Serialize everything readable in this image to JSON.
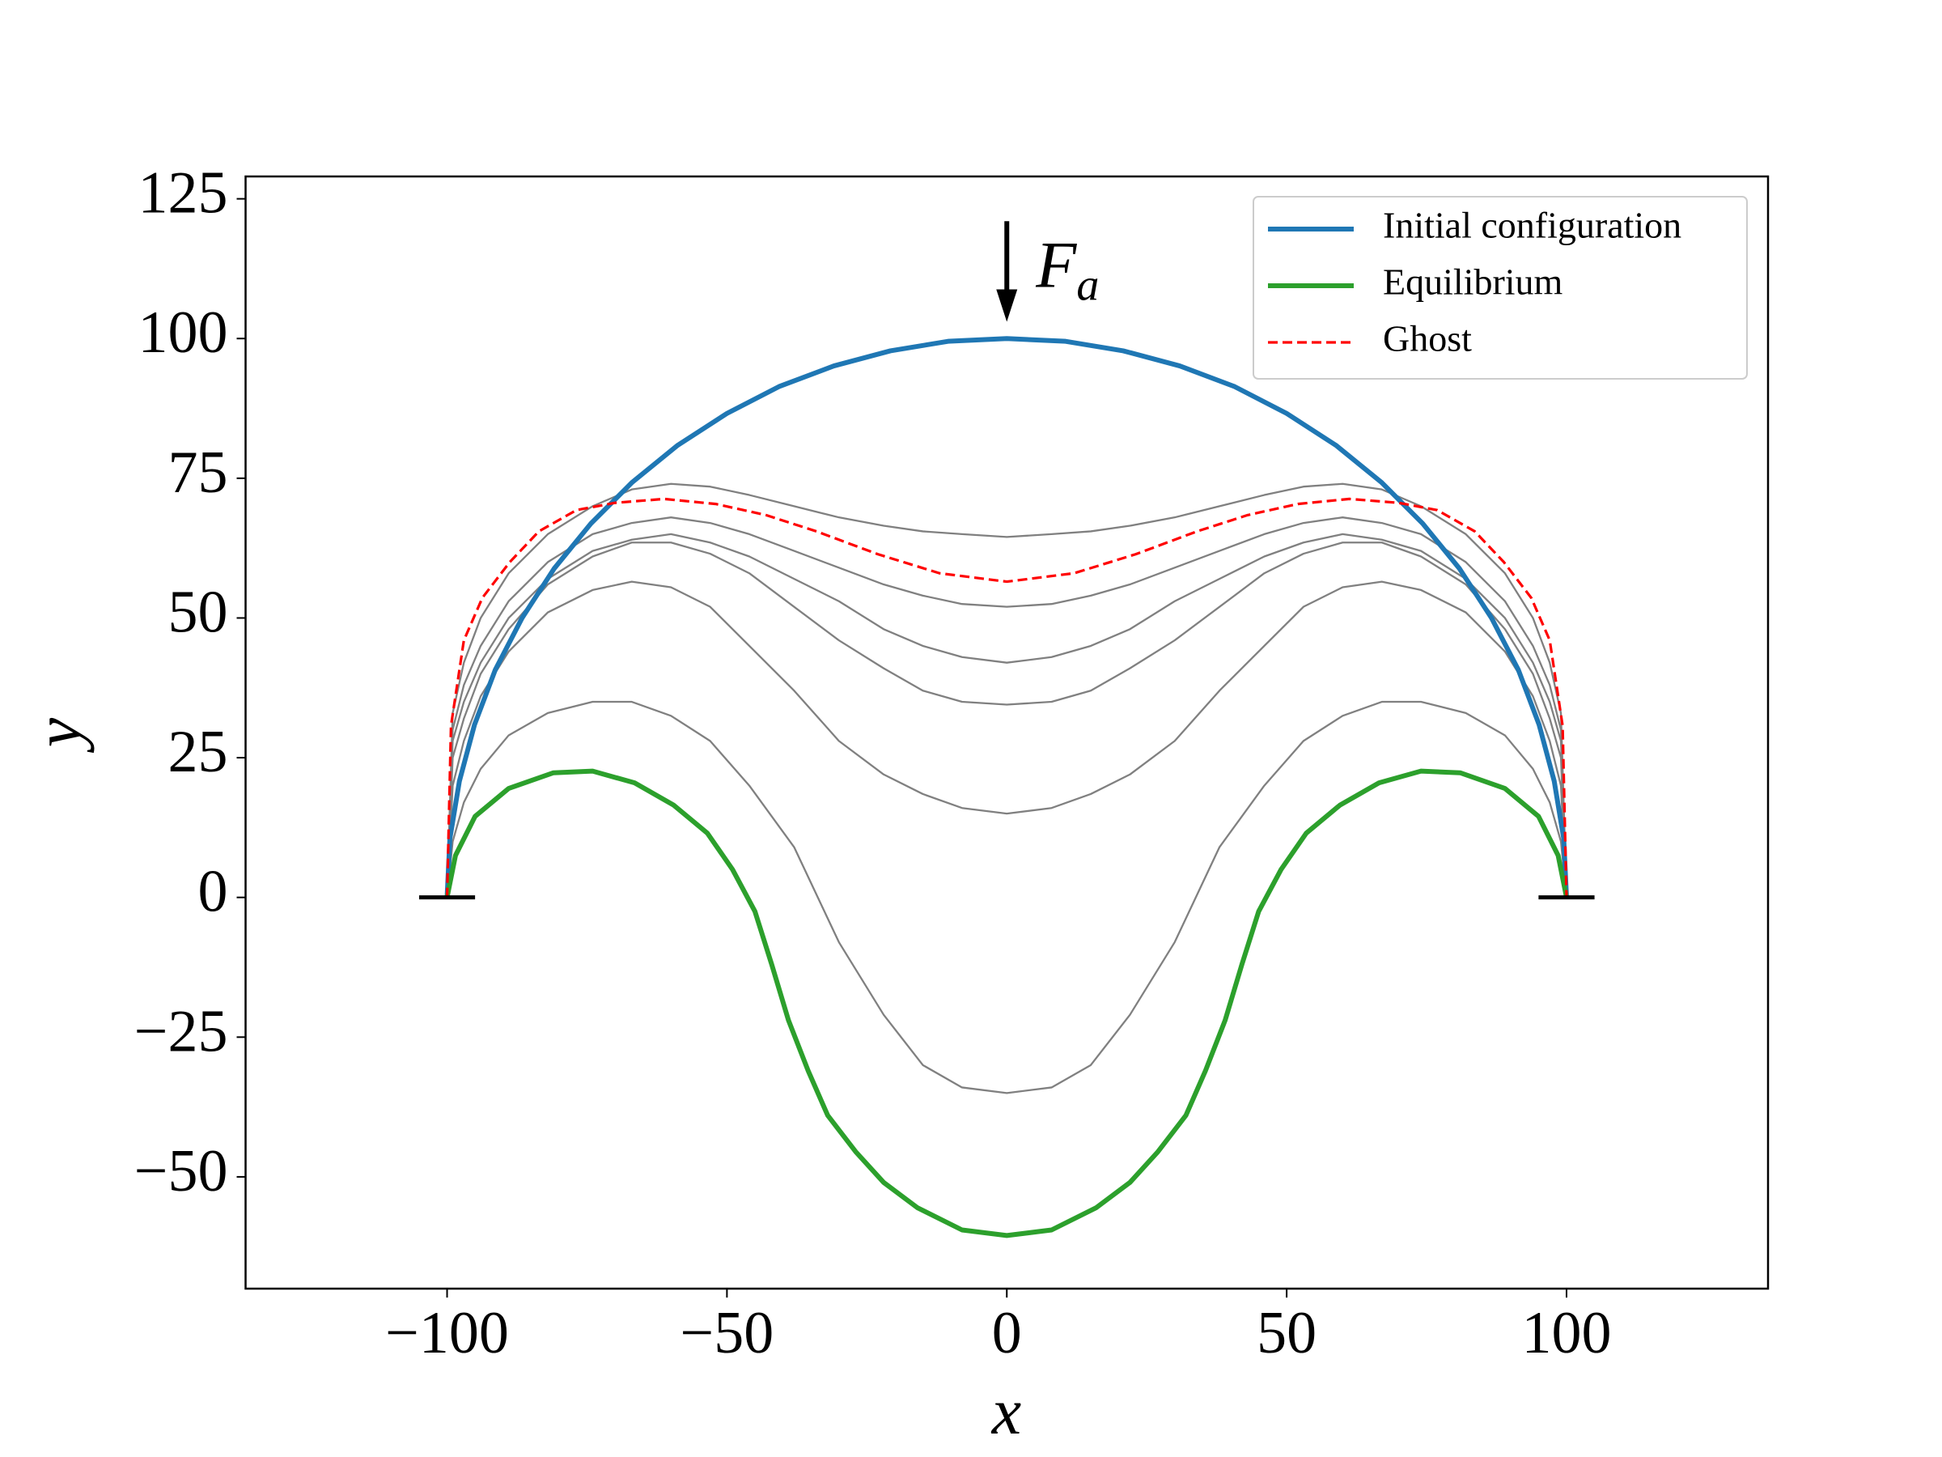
{
  "chart_data": {
    "type": "line",
    "xlabel": "x",
    "ylabel": "y",
    "xlim": [
      -136,
      136
    ],
    "ylim": [
      -70,
      129
    ],
    "xticks": [
      {
        "value": -100,
        "label": "−100"
      },
      {
        "value": -50,
        "label": "−50"
      },
      0,
      50,
      100
    ],
    "yticks": [
      {
        "value": -50,
        "label": "−50"
      },
      {
        "value": -25,
        "label": "−25"
      },
      0,
      25,
      50,
      75,
      100,
      125
    ],
    "legend": "upper right",
    "annotation": {
      "text": "F",
      "subscript": "a",
      "x": 0,
      "y_start": 121,
      "y_end": 103
    },
    "supports": [
      [
        -105,
        -95
      ],
      [
        95,
        105
      ]
    ],
    "series": [
      {
        "color": "#808080",
        "style": "thin",
        "x": [
          -100,
          -99,
          -97,
          -94,
          -89,
          -82,
          -74,
          -67,
          -60,
          -53,
          -46,
          -38,
          -30,
          -22,
          -15,
          -8,
          0,
          8,
          15,
          22,
          30,
          38,
          46,
          53,
          60,
          67,
          74,
          82,
          89,
          94,
          97,
          99,
          100
        ],
        "values": [
          0,
          33,
          42,
          50,
          58,
          65,
          70,
          73,
          74,
          73.5,
          72,
          70,
          68,
          66.5,
          65.5,
          65,
          64.5,
          65,
          65.5,
          66.5,
          68,
          70,
          72,
          73.5,
          74,
          73,
          70,
          65,
          58,
          50,
          42,
          33,
          0
        ]
      },
      {
        "color": "#808080",
        "style": "thin",
        "x": [
          -100,
          -99,
          -97,
          -94,
          -89,
          -82,
          -74,
          -67,
          -60,
          -53,
          -46,
          -38,
          -30,
          -22,
          -15,
          -8,
          0,
          8,
          15,
          22,
          30,
          38,
          46,
          53,
          60,
          67,
          74,
          82,
          89,
          94,
          97,
          99,
          100
        ],
        "values": [
          0,
          30,
          38,
          45,
          53,
          60,
          65,
          67,
          68,
          67,
          65,
          62,
          59,
          56,
          54,
          52.5,
          52,
          52.5,
          54,
          56,
          59,
          62,
          65,
          67,
          68,
          67,
          65,
          60,
          53,
          45,
          38,
          30,
          0
        ]
      },
      {
        "color": "#808080",
        "style": "thin",
        "x": [
          -100,
          -99,
          -97,
          -94,
          -89,
          -82,
          -74,
          -67,
          -60,
          -53,
          -46,
          -38,
          -30,
          -22,
          -15,
          -8,
          0,
          8,
          15,
          22,
          30,
          38,
          46,
          53,
          60,
          67,
          74,
          82,
          89,
          94,
          97,
          99,
          100
        ],
        "values": [
          0,
          28,
          35,
          42,
          50,
          57,
          62,
          64,
          65,
          63.5,
          61,
          57,
          53,
          48,
          45,
          43,
          42,
          43,
          45,
          48,
          53,
          57,
          61,
          63.5,
          65,
          64,
          62,
          57,
          50,
          42,
          35,
          28,
          0
        ]
      },
      {
        "color": "#808080",
        "style": "thin",
        "x": [
          -100,
          -99,
          -97,
          -94,
          -89,
          -82,
          -74,
          -67,
          -60,
          -53,
          -46,
          -38,
          -30,
          -22,
          -15,
          -8,
          0,
          8,
          15,
          22,
          30,
          38,
          46,
          53,
          60,
          67,
          74,
          82,
          89,
          94,
          97,
          99,
          100
        ],
        "values": [
          0,
          25,
          32,
          40,
          48,
          56,
          61,
          63.5,
          63.5,
          61.5,
          58,
          52,
          46,
          41,
          37,
          35,
          34.5,
          35,
          37,
          41,
          46,
          52,
          58,
          61.5,
          63.5,
          63.5,
          61,
          56,
          48,
          40,
          32,
          25,
          0
        ]
      },
      {
        "color": "#808080",
        "style": "thin",
        "x": [
          -100,
          -99,
          -97,
          -94,
          -89,
          -82,
          -74,
          -67,
          -60,
          -53,
          -46,
          -38,
          -30,
          -22,
          -15,
          -8,
          0,
          8,
          15,
          22,
          30,
          38,
          46,
          53,
          60,
          67,
          74,
          82,
          89,
          94,
          97,
          99,
          100
        ],
        "values": [
          0,
          20,
          28,
          36,
          44,
          51,
          55,
          56.5,
          55.5,
          52,
          45,
          37,
          28,
          22,
          18.5,
          16,
          15,
          16,
          18.5,
          22,
          28,
          37,
          45,
          52,
          55.5,
          56.5,
          55,
          51,
          44,
          36,
          28,
          20,
          0
        ]
      },
      {
        "color": "#808080",
        "style": "thin",
        "x": [
          -100,
          -99,
          -97,
          -94,
          -89,
          -82,
          -74,
          -67,
          -60,
          -53,
          -46,
          -38,
          -30,
          -22,
          -15,
          -8,
          0,
          8,
          15,
          22,
          30,
          38,
          46,
          53,
          60,
          67,
          74,
          82,
          89,
          94,
          97,
          99,
          100
        ],
        "values": [
          0,
          10,
          17,
          23,
          29,
          33,
          35,
          35,
          32.5,
          28,
          20,
          9,
          -8,
          -21,
          -30,
          -34,
          -35,
          -34,
          -30,
          -21,
          -8,
          9,
          20,
          28,
          32.5,
          35,
          35,
          33,
          29,
          23,
          17,
          10,
          0
        ]
      },
      {
        "name": "Initial configuration",
        "color": "#1f77b4",
        "style": "solid",
        "x": [
          -100,
          -99.5,
          -97.8,
          -95.1,
          -91.4,
          -86.6,
          -80.9,
          -74.3,
          -66.9,
          -58.8,
          -50,
          -40.7,
          -30.9,
          -20.8,
          -10.5,
          0,
          10.5,
          20.8,
          30.9,
          40.7,
          50,
          58.8,
          66.9,
          74.3,
          80.9,
          86.6,
          91.4,
          95.1,
          97.8,
          99.5,
          100
        ],
        "values": [
          0,
          10.5,
          20.8,
          30.9,
          40.7,
          50,
          58.8,
          66.9,
          74.3,
          80.9,
          86.6,
          91.4,
          95.1,
          97.8,
          99.5,
          100,
          99.5,
          97.8,
          95.1,
          91.4,
          86.6,
          80.9,
          74.3,
          66.9,
          58.8,
          50,
          40.7,
          30.9,
          20.8,
          10.5,
          0
        ]
      },
      {
        "name": "Equilibrium",
        "color": "#2ca02c",
        "style": "solid",
        "x": [
          -100,
          -98.5,
          -95,
          -89,
          -81,
          -74,
          -66.5,
          -59.5,
          -53.5,
          -49,
          -45,
          -42,
          -39,
          -35.5,
          -32,
          -27,
          -22,
          -16,
          -8,
          0,
          8,
          16,
          22,
          27,
          32,
          35.5,
          39,
          42,
          45,
          49,
          53.5,
          59.5,
          66.5,
          74,
          81,
          89,
          95,
          98.5,
          100
        ],
        "values": [
          0,
          7.5,
          14.5,
          19.5,
          22.3,
          22.6,
          20.5,
          16.5,
          11.5,
          5,
          -2.5,
          -12,
          -22,
          -31,
          -39,
          -45.5,
          -51,
          -55.5,
          -59.5,
          -60.5,
          -59.5,
          -55.5,
          -51,
          -45.5,
          -39,
          -31,
          -22,
          -12,
          -2.5,
          5,
          11.5,
          16.5,
          20.5,
          22.6,
          22.3,
          19.5,
          14.5,
          7.5,
          0
        ]
      },
      {
        "name": "Ghost",
        "color": "#ff0000",
        "style": "dashed",
        "x": [
          -100,
          -99.3,
          -97,
          -93.7,
          -88.8,
          -83.6,
          -76.9,
          -70,
          -61.2,
          -52,
          -43,
          -34,
          -23,
          -12,
          0,
          12,
          23,
          34,
          43,
          52,
          61.2,
          70,
          76.9,
          83.6,
          88.8,
          93.7,
          97,
          99.3,
          100
        ],
        "values": [
          0,
          30.7,
          46,
          53.6,
          60,
          65.5,
          69.3,
          70.6,
          71.3,
          70.4,
          68.4,
          65.5,
          61.4,
          58,
          56.5,
          58,
          61.4,
          65.5,
          68.4,
          70.4,
          71.3,
          70.6,
          69.3,
          65.5,
          60,
          53.6,
          46,
          30.7,
          0
        ]
      }
    ]
  }
}
